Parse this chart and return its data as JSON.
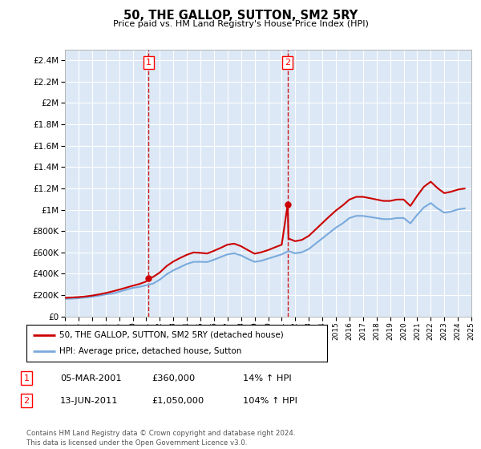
{
  "title": "50, THE GALLOP, SUTTON, SM2 5RY",
  "subtitle": "Price paid vs. HM Land Registry's House Price Index (HPI)",
  "ylim": [
    0,
    2500000
  ],
  "yticks": [
    0,
    200000,
    400000,
    600000,
    800000,
    1000000,
    1200000,
    1400000,
    1600000,
    1800000,
    2000000,
    2200000,
    2400000
  ],
  "ytick_labels": [
    "£0",
    "£200K",
    "£400K",
    "£600K",
    "£800K",
    "£1M",
    "£1.2M",
    "£1.4M",
    "£1.6M",
    "£1.8M",
    "£2M",
    "£2.2M",
    "£2.4M"
  ],
  "background_color": "#ffffff",
  "plot_bg_color": "#dce8f5",
  "grid_color": "#ffffff",
  "sale1_date": 2001.17,
  "sale1_price": 360000,
  "sale2_date": 2011.44,
  "sale2_price": 1050000,
  "sale1_label": "1",
  "sale2_label": "2",
  "vline_color": "#cc0000",
  "marker_color": "#cc0000",
  "hpi_color": "#7aaadd",
  "price_color": "#cc0000",
  "legend_label_price": "50, THE GALLOP, SUTTON, SM2 5RY (detached house)",
  "legend_label_hpi": "HPI: Average price, detached house, Sutton",
  "table_row1": [
    "1",
    "05-MAR-2001",
    "£360,000",
    "14% ↑ HPI"
  ],
  "table_row2": [
    "2",
    "13-JUN-2011",
    "£1,050,000",
    "104% ↑ HPI"
  ],
  "footer": "Contains HM Land Registry data © Crown copyright and database right 2024.\nThis data is licensed under the Open Government Licence v3.0.",
  "hpi_years": [
    1995,
    1995.5,
    1996,
    1996.5,
    1997,
    1997.5,
    1998,
    1998.5,
    1999,
    1999.5,
    2000,
    2000.5,
    2001,
    2001.5,
    2002,
    2002.5,
    2003,
    2003.5,
    2004,
    2004.5,
    2005,
    2005.5,
    2006,
    2006.5,
    2007,
    2007.5,
    2008,
    2008.5,
    2009,
    2009.5,
    2010,
    2010.5,
    2011,
    2011.5,
    2012,
    2012.5,
    2013,
    2013.5,
    2014,
    2014.5,
    2015,
    2015.5,
    2016,
    2016.5,
    2017,
    2017.5,
    2018,
    2018.5,
    2019,
    2019.5,
    2020,
    2020.5,
    2021,
    2021.5,
    2022,
    2022.5,
    2023,
    2023.5,
    2024,
    2024.5
  ],
  "hpi_values": [
    165000,
    168000,
    172000,
    178000,
    185000,
    195000,
    207000,
    215000,
    232000,
    250000,
    268000,
    278000,
    293000,
    308000,
    345000,
    395000,
    432000,
    462000,
    492000,
    512000,
    512000,
    510000,
    532000,
    557000,
    582000,
    592000,
    572000,
    540000,
    512000,
    522000,
    542000,
    562000,
    582000,
    612000,
    592000,
    602000,
    632000,
    682000,
    732000,
    782000,
    832000,
    872000,
    922000,
    942000,
    942000,
    932000,
    922000,
    912000,
    912000,
    922000,
    922000,
    872000,
    952000,
    1022000,
    1062000,
    1012000,
    972000,
    982000,
    1002000,
    1012000
  ],
  "price_seg1_years": [
    1995,
    1995.5,
    1996,
    1996.5,
    1997,
    1997.5,
    1998,
    1998.5,
    1999,
    1999.5,
    2000,
    2000.5,
    2001,
    2001.17
  ],
  "price_seg1_values": [
    175000,
    178000,
    182000,
    188000,
    196000,
    207000,
    220000,
    235000,
    252000,
    270000,
    288000,
    305000,
    328000,
    360000
  ],
  "price_seg2_years": [
    2001.17,
    2001.5,
    2002,
    2002.5,
    2003,
    2003.5,
    2004,
    2004.5,
    2005,
    2005.5,
    2006,
    2006.5,
    2007,
    2007.5,
    2008,
    2008.5,
    2009,
    2009.5,
    2010,
    2010.5,
    2011,
    2011.44
  ],
  "price_seg2_values": [
    360000,
    370000,
    412000,
    472000,
    515000,
    548000,
    578000,
    600000,
    596000,
    590000,
    615000,
    643000,
    673000,
    682000,
    658000,
    622000,
    588000,
    602000,
    622000,
    648000,
    672000,
    1050000
  ],
  "price_seg3_years": [
    2011.44,
    2011.5,
    2012,
    2012.5,
    2013,
    2013.5,
    2014,
    2014.5,
    2015,
    2015.5,
    2016,
    2016.5,
    2017,
    2017.5,
    2018,
    2018.5,
    2019,
    2019.5,
    2020,
    2020.5,
    2021,
    2021.5,
    2022,
    2022.5,
    2023,
    2023.5,
    2024,
    2024.5
  ],
  "price_seg3_values": [
    1050000,
    730000,
    705000,
    718000,
    755000,
    815000,
    875000,
    935000,
    992000,
    1040000,
    1095000,
    1120000,
    1120000,
    1108000,
    1095000,
    1082000,
    1082000,
    1095000,
    1095000,
    1035000,
    1130000,
    1215000,
    1262000,
    1202000,
    1155000,
    1168000,
    1188000,
    1198000
  ]
}
